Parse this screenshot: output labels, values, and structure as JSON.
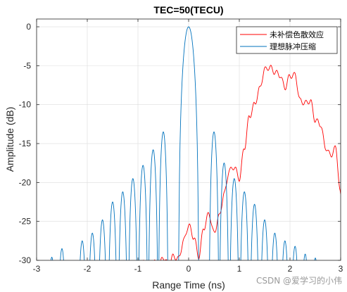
{
  "chart_data": {
    "type": "line",
    "title": "TEC=50(TECU)",
    "xlabel": "Range Time (ns)",
    "ylabel": "Amplitude (dB)",
    "xlim": [
      -3,
      3
    ],
    "ylim": [
      -30,
      1
    ],
    "xticks": [
      -3,
      -2,
      -1,
      0,
      1,
      2,
      3
    ],
    "yticks": [
      0,
      -5,
      -10,
      -15,
      -20,
      -25,
      -30
    ],
    "grid": true,
    "legend_position": "top-right",
    "series": [
      {
        "name": "未补偿色散效应",
        "color": "#ff0000",
        "style": "oscillating",
        "x": [
          -1.5,
          -1.4,
          -1.3,
          -1.2,
          -1.1,
          -1.0,
          -0.9,
          -0.8,
          -0.7,
          -0.6,
          -0.5,
          -0.4,
          -0.3,
          -0.2,
          -0.1,
          0.0,
          0.1,
          0.2,
          0.3,
          0.4,
          0.5,
          0.6,
          0.7,
          0.8,
          0.9,
          1.0,
          1.1,
          1.2,
          1.3,
          1.4,
          1.5,
          1.6,
          1.7,
          1.8,
          1.9,
          2.0,
          2.1,
          2.2,
          2.3,
          2.4,
          2.5,
          2.6,
          2.7,
          2.8,
          2.9,
          3.0
        ],
        "values": [
          -33,
          -32,
          -32,
          -32,
          -31,
          -31,
          -30.3,
          -31,
          -30,
          -31,
          -29.6,
          -30.5,
          -29.5,
          -29.8,
          -27.5,
          -25.5,
          -27,
          -29.5,
          -25.8,
          -24,
          -26.5,
          -24.4,
          -21.5,
          -18.5,
          -18,
          -19.5,
          -15.5,
          -11.5,
          -10,
          -8,
          -5.5,
          -5.2,
          -5.8,
          -6.2,
          -7.8,
          -6.3,
          -6.2,
          -9.5,
          -9.8,
          -9.5,
          -12,
          -12.5,
          -15.5,
          -16.5,
          -15.6,
          -21.5
        ]
      },
      {
        "name": "理想脉冲压缩",
        "color": "#0072bd",
        "style": "sinc-lobes",
        "lobe_width_ns": 0.2,
        "mainlobe": {
          "center": 0,
          "half_width": 0.2,
          "peak": 0
        },
        "sidelobes": [
          {
            "x": -2.7,
            "peak": -29.6
          },
          {
            "x": -2.5,
            "peak": -28.5
          },
          {
            "x": -2.1,
            "peak": -27.5
          },
          {
            "x": -1.9,
            "peak": -26.5
          },
          {
            "x": -1.7,
            "peak": -24.8
          },
          {
            "x": -1.5,
            "peak": -22.5
          },
          {
            "x": -1.3,
            "peak": -21.2
          },
          {
            "x": -1.1,
            "peak": -19.5
          },
          {
            "x": -0.9,
            "peak": -17.8
          },
          {
            "x": -0.7,
            "peak": -15.8
          },
          {
            "x": -0.5,
            "peak": -13.5
          },
          {
            "x": 0.5,
            "peak": -13.5
          },
          {
            "x": 0.7,
            "peak": -17.5
          },
          {
            "x": 0.9,
            "peak": -19.5
          },
          {
            "x": 1.1,
            "peak": -21.2
          },
          {
            "x": 1.3,
            "peak": -22.8
          },
          {
            "x": 1.5,
            "peak": -24.8
          },
          {
            "x": 1.7,
            "peak": -26.5
          },
          {
            "x": 1.9,
            "peak": -27.5
          },
          {
            "x": 2.1,
            "peak": -28.2
          },
          {
            "x": 2.3,
            "peak": -29.2
          },
          {
            "x": 2.5,
            "peak": -29.7
          }
        ]
      }
    ]
  },
  "watermark": "CSDN @爱学习的小伟"
}
